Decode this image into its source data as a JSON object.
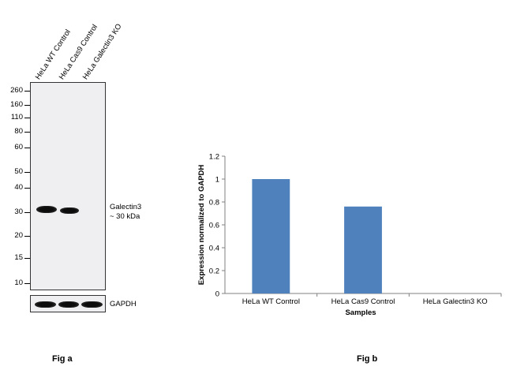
{
  "fig_a": {
    "lanes": [
      "HeLa WT Control",
      "HeLa Cas9 Control",
      "HeLa Galectin3 KO"
    ],
    "mw_markers": [
      "260",
      "160",
      "110",
      "80",
      "60",
      "50",
      "40",
      "30",
      "20",
      "15",
      "10"
    ],
    "target_label": "Galectin3",
    "target_size": "~ 30 kDa",
    "loading_control": "GAPDH",
    "caption": "Fig a"
  },
  "fig_b": {
    "caption": "Fig b"
  },
  "chart_data": {
    "type": "bar",
    "categories": [
      "HeLa WT Control",
      "HeLa Cas9 Control",
      "HeLa Galectin3 KO"
    ],
    "values": [
      1.0,
      0.76,
      0.0
    ],
    "title": "",
    "xlabel": "Samples",
    "ylabel": "Expression  normalized to GAPDH",
    "ylim": [
      0,
      1.2
    ],
    "yticks": [
      "0",
      "0.2",
      "0.4",
      "0.6",
      "0.8",
      "1",
      "1.2"
    ],
    "bar_color": "#4f81bd",
    "grid": false,
    "legend": "none"
  }
}
